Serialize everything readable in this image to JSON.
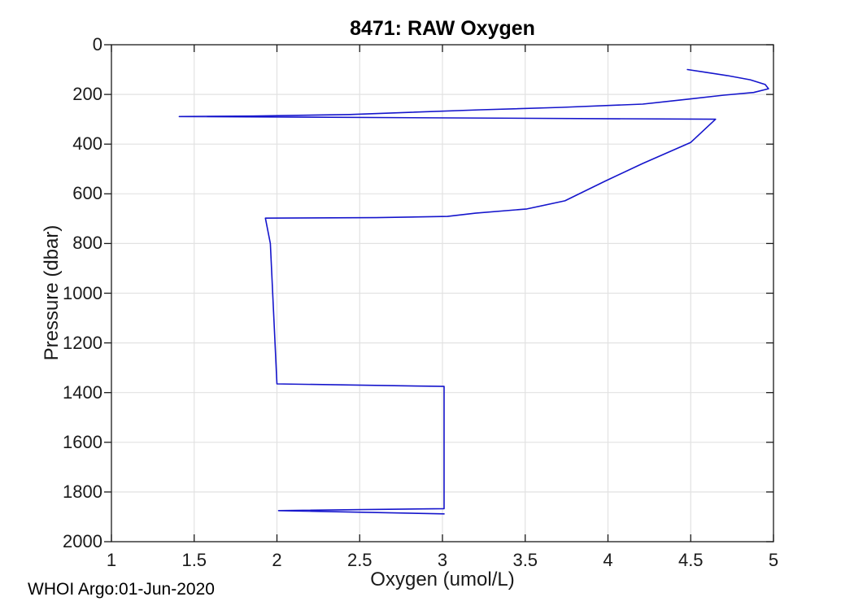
{
  "page": {
    "footer": "WHOI Argo:01-Jun-2020",
    "background": "#ffffff"
  },
  "chart_data": {
    "type": "line",
    "title": "8471: RAW Oxygen",
    "xlabel": "Oxygen (umol/L)",
    "ylabel": "Pressure (dbar)",
    "xlim": [
      1,
      5
    ],
    "ylim": [
      0,
      2000
    ],
    "y_axis_reversed": true,
    "grid": true,
    "legend_position": "none",
    "xticks": [
      1,
      1.5,
      2,
      2.5,
      3,
      3.5,
      4,
      4.5,
      5
    ],
    "yticks": [
      0,
      200,
      400,
      600,
      800,
      1000,
      1200,
      1400,
      1600,
      1800,
      2000
    ],
    "axis_color": "#1a1a1a",
    "grid_color": "#e2e2e2",
    "line_color": "#1515cc",
    "point_format": "[oxygen_umol_per_L, pressure_dbar]",
    "series": [
      {
        "name": "raw-oxygen-profile",
        "points": [
          [
            4.48,
            100
          ],
          [
            4.58,
            110
          ],
          [
            4.72,
            124
          ],
          [
            4.86,
            141
          ],
          [
            4.95,
            160
          ],
          [
            4.97,
            177
          ],
          [
            4.88,
            192
          ],
          [
            4.7,
            203
          ],
          [
            4.5,
            218
          ],
          [
            4.21,
            239
          ],
          [
            3.72,
            252
          ],
          [
            3.23,
            262
          ],
          [
            2.44,
            281
          ],
          [
            1.85,
            287
          ],
          [
            1.41,
            289
          ],
          [
            4.65,
            300
          ],
          [
            4.5,
            393
          ],
          [
            4.21,
            478
          ],
          [
            3.98,
            550
          ],
          [
            3.74,
            628
          ],
          [
            3.51,
            661
          ],
          [
            3.2,
            678
          ],
          [
            3.03,
            691
          ],
          [
            2.6,
            696
          ],
          [
            1.93,
            698
          ],
          [
            1.96,
            800
          ],
          [
            2.0,
            1365
          ],
          [
            3.01,
            1375
          ],
          [
            3.01,
            1867
          ],
          [
            2.01,
            1875
          ],
          [
            3.01,
            1888
          ]
        ]
      }
    ]
  }
}
